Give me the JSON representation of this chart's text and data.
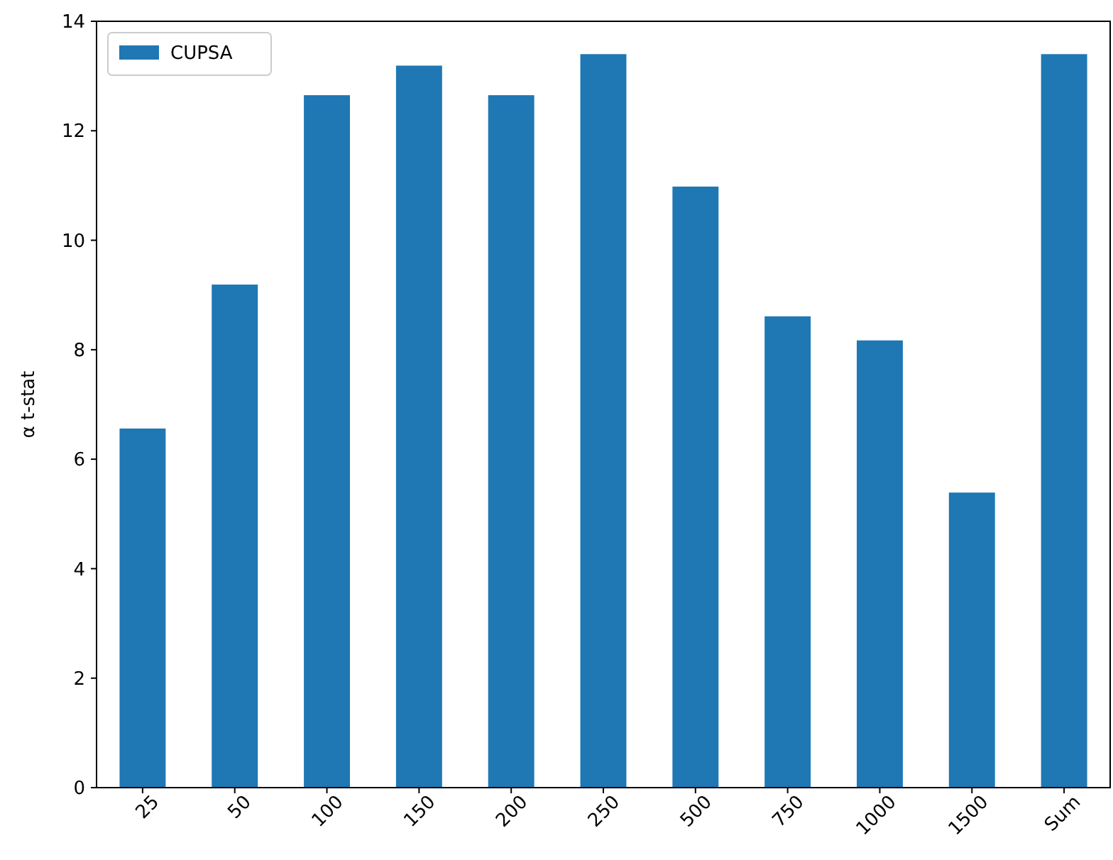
{
  "chart_data": {
    "type": "bar",
    "ylabel": "α t-stat",
    "categories": [
      "25",
      "50",
      "100",
      "150",
      "200",
      "250",
      "500",
      "750",
      "1000",
      "1500",
      "Sum"
    ],
    "series": [
      {
        "name": "CUPSA",
        "color": "#1f77b4",
        "values": [
          6.56,
          9.19,
          12.65,
          13.19,
          12.65,
          13.4,
          10.98,
          8.61,
          8.17,
          5.39,
          13.4
        ]
      }
    ],
    "ylim": [
      0,
      14
    ],
    "yticks": [
      0,
      2,
      4,
      6,
      8,
      10,
      12,
      14
    ],
    "legend": "top left",
    "grid": false
  }
}
